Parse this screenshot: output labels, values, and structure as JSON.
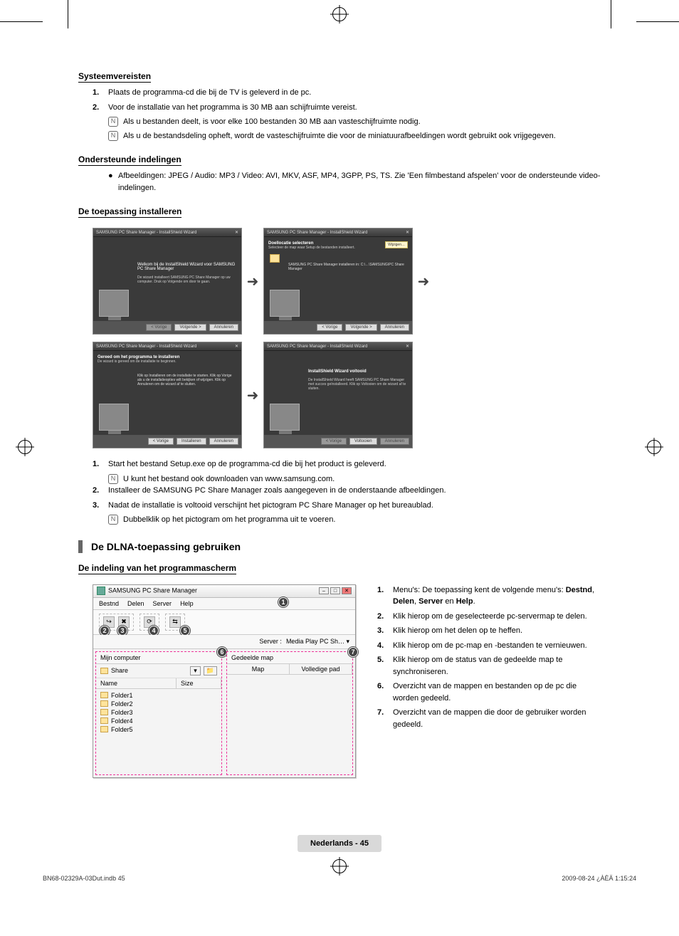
{
  "sections": {
    "systeem": {
      "title": "Systeemvereisten",
      "item1_num": "1.",
      "item1": "Plaats de programma-cd die bij de TV is geleverd in de pc.",
      "item2_num": "2.",
      "item2": "Voor de installatie van het programma is 30 MB aan schijfruimte vereist.",
      "note1": "Als u bestanden deelt, is voor elke 100 bestanden 30 MB aan vasteschijfruimte nodig.",
      "note2": "Als u de bestandsdeling opheft, wordt de vasteschijfruimte die voor de miniatuurafbeeldingen wordt gebruikt ook vrijgegeven."
    },
    "ondersteund": {
      "title": "Ondersteunde indelingen",
      "bullet": "●",
      "text": "Afbeeldingen: JPEG / Audio: MP3 / Video: AVI, MKV, ASF, MP4, 3GPP, PS, TS. Zie 'Een filmbestand afspelen' voor de ondersteunde video-indelingen."
    },
    "installeren": {
      "title": "De toepassing installeren",
      "item1_num": "1.",
      "item1": "Start het bestand Setup.exe op de programma-cd die bij het product is geleverd.",
      "note1": "U kunt het bestand ook downloaden van www.samsung.com.",
      "item2_num": "2.",
      "item2": "Installeer de SAMSUNG PC Share Manager zoals aangegeven in de onderstaande afbeeldingen.",
      "item3_num": "3.",
      "item3": "Nadat de installatie is voltooid verschijnt het pictogram PC Share Manager op het bureaublad.",
      "note3": "Dubbelklik op het pictogram om het programma uit te voeren."
    },
    "dlna": {
      "title": "De DLNA-toepassing gebruiken"
    },
    "indeling": {
      "title": "De indeling van het programmascherm",
      "item1_num": "1.",
      "item1": "Menu's: De toepassing kent de volgende menu's: Destnd, Delen, Server en Help.",
      "item2_num": "2.",
      "item2": "Klik hierop om de geselecteerde pc-servermap te delen.",
      "item3_num": "3.",
      "item3": "Klik hierop om het delen op te heffen.",
      "item4_num": "4.",
      "item4": "Klik hierop om de pc-map en -bestanden te vernieuwen.",
      "item5_num": "5.",
      "item5": "Klik hierop om de status van de gedeelde map te synchroniseren.",
      "item6_num": "6.",
      "item6": "Overzicht van de mappen en bestanden op de pc die worden gedeeld.",
      "item7_num": "7.",
      "item7": "Overzicht van de mappen die door de gebruiker worden gedeeld."
    }
  },
  "installer": {
    "window_title": "SAMSUNG PC Share Manager - InstallShield Wizard",
    "close": "✕",
    "welcome": "Welkom bij de InstallShield Wizard voor SAMSUNG PC Share Manager",
    "welcome_sub": "De wizard installeert SAMSUNG PC Share Manager op uw computer. Druk op Volgende om door te gaan.",
    "dest_head": "Doellocatie selecteren",
    "dest_sub": "Selecteer de map waar Setup de bestanden installeert.",
    "dest_path": "SAMSUNG PC Share Manager installeren in: C:\\…\\SAMSUNG\\PC Share Manager",
    "dest_btn": "Wijzigen…",
    "ready_head": "Gereed om het programma te installeren",
    "ready_sub": "De wizard is gereed om de installatie te beginnen.",
    "ready_text": "Klik op Installeren om de installatie te starten. Klik op Vorige als u de installatieopties wilt bekijken of wijzigen. Klik op Annuleren om de wizard af te sluiten.",
    "done_head": "InstallShield Wizard voltooid",
    "done_text": "De InstallShield Wizard heeft SAMSUNG PC Share Manager met succes geïnstalleerd. Klik op Voltooien om de wizard af te sluiten.",
    "btn_back": "< Vorige",
    "btn_next": "Volgende >",
    "btn_install": "Installeren",
    "btn_finish": "Voltooien",
    "btn_cancel": "Annuleren",
    "arrow": "➜"
  },
  "app": {
    "title": "SAMSUNG PC Share Manager",
    "menu_bestnd": "Bestnd",
    "menu_delen": "Delen",
    "menu_server": "Server",
    "menu_help": "Help",
    "server_label": "Server :",
    "server_value": "Media Play PC Sh…  ▾",
    "left_header": "Mijn computer",
    "share_label": "Share",
    "col_name": "Name",
    "col_size": "Size",
    "right_header": "Gedeelde map",
    "col_map": "Map",
    "col_path": "Volledige pad",
    "folders": [
      "Folder1",
      "Folder2",
      "Folder3",
      "Folder4",
      "Folder5"
    ],
    "dropdown": "▾",
    "up_btn": "📁"
  },
  "footer": {
    "page_label": "Nederlands - 45",
    "doc_left": "BN68-02329A-03Dut.indb   45",
    "doc_right": "2009-08-24   ¿ÀÈÄ 1:15:24"
  },
  "note_glyph": "N"
}
